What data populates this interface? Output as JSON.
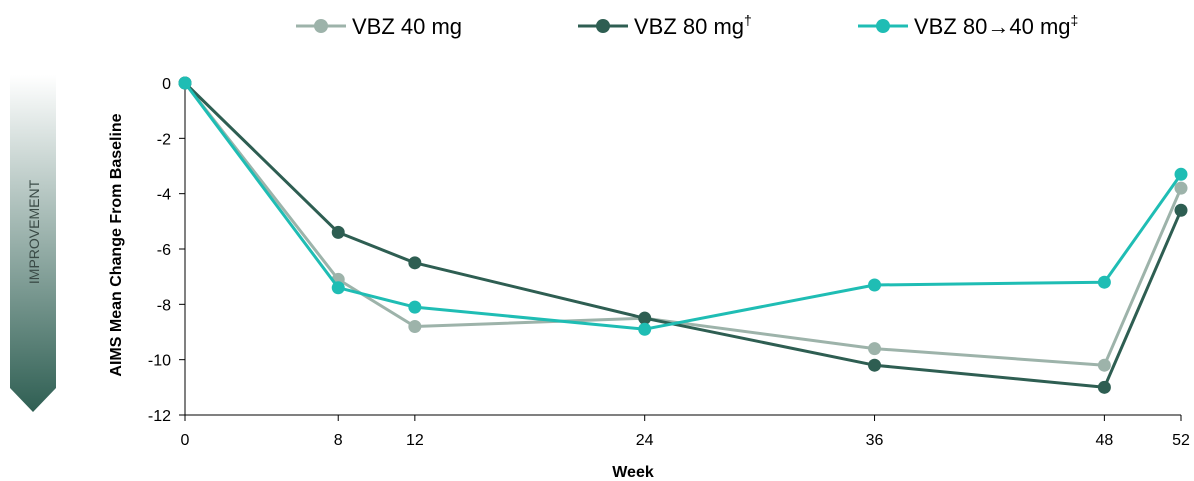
{
  "chart_data": {
    "type": "line",
    "x": [
      0,
      8,
      12,
      24,
      36,
      48,
      52
    ],
    "x_ticks": [
      "0",
      "8",
      "12",
      "24",
      "36",
      "48",
      "52"
    ],
    "xlim": [
      0,
      52
    ],
    "xlabel": "Week",
    "ylabel": "AIMS Mean Change From Baseline",
    "ylim": [
      -12,
      0
    ],
    "y_ticks": [
      "0",
      "-2",
      "-4",
      "-6",
      "-8",
      "-10",
      "-12"
    ],
    "y_tick_values": [
      0,
      -2,
      -4,
      -6,
      -8,
      -10,
      -12
    ],
    "grid": false,
    "legend_position": "top",
    "improvement_label": "IMPROVEMENT",
    "series": [
      {
        "name": "VBZ 40 mg",
        "sup": "",
        "color": "#9db3aa",
        "values": [
          0,
          -7.1,
          -8.8,
          -8.5,
          -9.6,
          -10.2,
          -3.8
        ]
      },
      {
        "name": "VBZ 80 mg",
        "sup": "†",
        "color": "#2e5e52",
        "values": [
          0,
          -5.4,
          -6.5,
          -8.5,
          -10.2,
          -11.0,
          -4.6
        ]
      },
      {
        "name": "VBZ 80→40 mg",
        "sup": "‡",
        "color": "#1fbdb4",
        "values": [
          0,
          -7.4,
          -8.1,
          -8.9,
          -7.3,
          -7.2,
          -3.3
        ]
      }
    ]
  }
}
